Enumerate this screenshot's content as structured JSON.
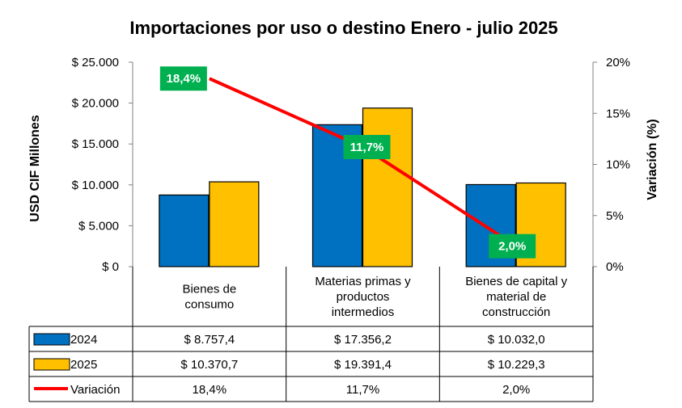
{
  "title": "Importaciones por uso o destino  Enero - julio 2025",
  "chart_data": {
    "type": "bar",
    "categories": [
      [
        "Bienes de",
        "consumo"
      ],
      [
        "Materias primas y",
        "productos",
        "intermedios"
      ],
      [
        "Bienes de capital y",
        "material de",
        "construcción"
      ]
    ],
    "series": [
      {
        "name": "2024",
        "values": [
          8757.4,
          17356.2,
          10032.0
        ],
        "labels": [
          "$ 8.757,4",
          "$ 17.356,2",
          "$ 10.032,0"
        ],
        "color": "#0070C0"
      },
      {
        "name": "2025",
        "values": [
          10370.7,
          19391.4,
          10229.3
        ],
        "labels": [
          "$ 10.370,7",
          "$ 19.391,4",
          "$ 10.229,3"
        ],
        "color": "#FFC000"
      }
    ],
    "line_series": {
      "name": "Variación",
      "values": [
        18.4,
        11.7,
        2.0
      ],
      "labels": [
        "18,4%",
        "11,7%",
        "2,0%"
      ],
      "color": "#FF0000",
      "label_bg": "#00B050"
    },
    "ylabel": "USD CIF Millones",
    "y2label": "Variación (%)",
    "ylim": [
      0,
      25000
    ],
    "y2lim": [
      0,
      20
    ],
    "yticks": [
      "$ 0",
      "$ 5.000",
      "$ 10.000",
      "$ 15.000",
      "$ 20.000",
      "$ 25.000"
    ],
    "y2ticks": [
      "0%",
      "5%",
      "10%",
      "15%",
      "20%"
    ],
    "grid": false,
    "data_table": true
  }
}
